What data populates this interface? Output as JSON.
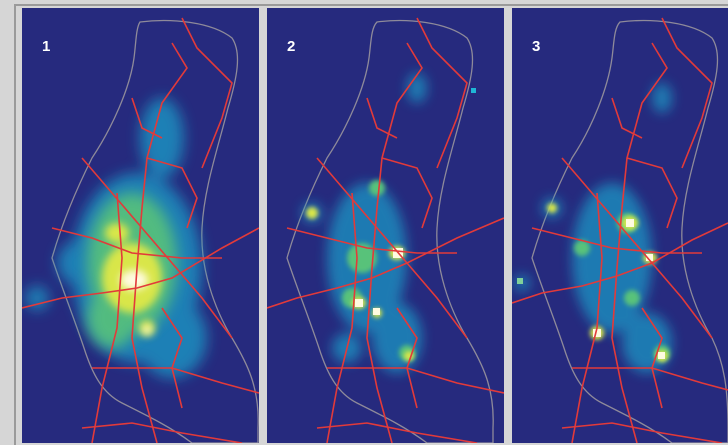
{
  "panels": [
    {
      "label": "1",
      "hotspot_pattern": "dense-central"
    },
    {
      "label": "2",
      "hotspot_pattern": "clustered-nodes"
    },
    {
      "label": "3",
      "hotspot_pattern": "clustered-nodes"
    }
  ],
  "colors": {
    "background": "#262a7e",
    "boundary": "#8e8a9a",
    "roads": "#e23a3a",
    "heat_low": "#1f8fc0",
    "heat_mid": "#59c27a",
    "heat_high": "#d9e64a",
    "heat_peak": "#fffbe0",
    "page": "#d6d6d6"
  }
}
